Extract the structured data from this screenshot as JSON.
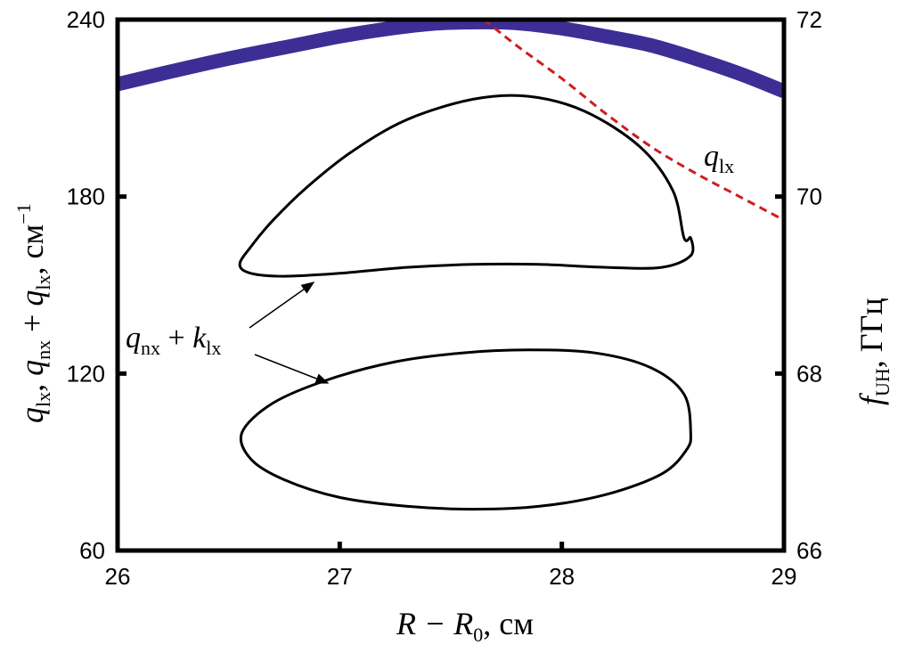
{
  "chart_data": {
    "type": "line",
    "xlabel": {
      "main": "R − R",
      "sub": "0",
      "unit": ", см"
    },
    "ylabel_left": {
      "q1": "q",
      "q1_sub": "lx",
      "sep1": ", ",
      "q2": "q",
      "q2_sub": "nx",
      "plus": " + ",
      "q3": "q",
      "q3_sub": "lx",
      "unit": ", см",
      "unit_sup": "−1"
    },
    "ylabel_right": {
      "f": "f",
      "f_sub": "UH",
      "unit": ", ГГц"
    },
    "xlim": [
      26,
      29
    ],
    "ylim_left": [
      60,
      240
    ],
    "ylim_right": [
      66,
      72
    ],
    "x_ticks": [
      "26",
      "27",
      "28",
      "29"
    ],
    "y_ticks_left": [
      "60",
      "120",
      "180",
      "240"
    ],
    "y_ticks_right": [
      "66",
      "68",
      "70",
      "72"
    ],
    "colors": {
      "f_uh": "#3d2e96",
      "q_lx": "#cc1f1f",
      "loops": "#000000",
      "axes": "#000000"
    },
    "series": [
      {
        "name": "f_UH",
        "axis": "right",
        "style": "thick-solid",
        "x": [
          26.0,
          26.2,
          26.5,
          26.8,
          27.0,
          27.2,
          27.4,
          27.6,
          27.8,
          28.0,
          28.2,
          28.4,
          28.6,
          28.8,
          29.0
        ],
        "y": [
          71.27,
          71.39,
          71.56,
          71.71,
          71.81,
          71.89,
          71.95,
          71.97,
          71.96,
          71.9,
          71.81,
          71.71,
          71.56,
          71.39,
          71.19
        ]
      },
      {
        "name": "q_lx",
        "axis": "left",
        "style": "dashed",
        "x": [
          27.65,
          27.8,
          28.0,
          28.2,
          28.4,
          28.6,
          28.8,
          29.0
        ],
        "y": [
          240,
          231,
          220,
          208,
          197,
          188,
          180,
          172
        ]
      },
      {
        "name": "q_nx + k_lx (upper)",
        "axis": "left",
        "style": "closed-curve",
        "x": [
          28.55,
          28.5,
          28.35,
          28.1,
          27.85,
          27.6,
          27.3,
          27.05,
          26.85,
          26.7,
          26.6,
          26.55,
          26.6,
          26.75,
          27.0,
          27.3,
          27.6,
          27.9,
          28.2,
          28.45,
          28.58,
          28.58,
          28.55
        ],
        "y": [
          166,
          182,
          197,
          209,
          214,
          213,
          206,
          195,
          183,
          172,
          163,
          157,
          154,
          153,
          154,
          156,
          157,
          157,
          156,
          156,
          160,
          166,
          166
        ]
      },
      {
        "name": "q_nx + k_lx (lower)",
        "axis": "left",
        "style": "closed-curve",
        "x": [
          28.58,
          28.55,
          28.4,
          28.15,
          27.85,
          27.55,
          27.25,
          26.95,
          26.7,
          26.56,
          26.6,
          26.75,
          27.0,
          27.3,
          27.6,
          27.9,
          28.2,
          28.45,
          28.56,
          28.58
        ],
        "y": [
          100,
          113,
          122,
          127,
          128,
          127,
          124,
          118,
          110,
          100,
          91,
          84,
          78,
          75,
          74,
          75,
          79,
          86,
          94,
          100
        ]
      }
    ],
    "annotations": [
      {
        "label": "q",
        "sub": "lx"
      },
      {
        "label": "q",
        "sub": "nx",
        "plus": " + ",
        "label2": "k",
        "sub2": "lx"
      }
    ]
  }
}
